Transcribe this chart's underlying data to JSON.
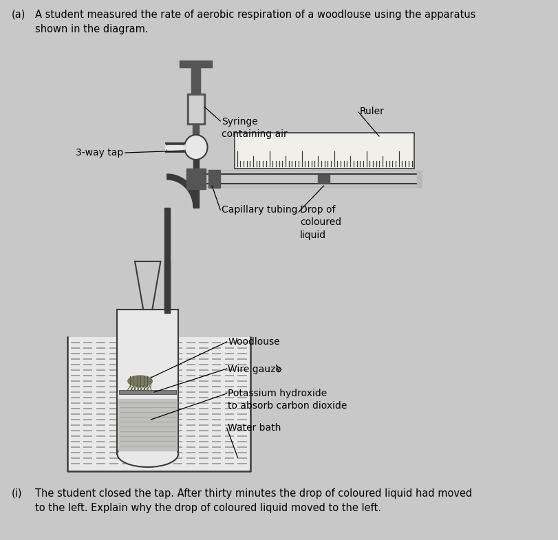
{
  "background_color": "#c8c8c8",
  "title_a": "(a)",
  "title_text": "A student measured the rate of aerobic respiration of a woodlouse using the apparatus\nshown in the diagram.",
  "question_i": "(i)",
  "question_text": "The student closed the tap. After thirty minutes the drop of coloured liquid had moved\nto the left. Explain why the drop of coloured liquid moved to the left.",
  "labels": {
    "three_way_tap": "3-way tap",
    "syringe": "Syringe\ncontaining air",
    "ruler": "Ruler",
    "capillary_tubing": "Capillary tubing",
    "drop": "Drop of\ncoloured\nliquid",
    "woodlouse": "Woodlouse",
    "wire_gauze": "Wire gauze",
    "potassium": "Potassium hydroxide\nto absorb carbon dioxide",
    "water_bath": "Water bath"
  },
  "colors": {
    "dark_gray": "#3a3a3a",
    "medium_gray": "#808080",
    "light_gray": "#b8b8b8",
    "near_white": "#e8e8e8",
    "white": "#ffffff",
    "black": "#000000",
    "ruler_bg": "#f0f0e8",
    "syringe_dark": "#555555",
    "syringe_light": "#d0d0d0",
    "tube_gray": "#a0a0a0",
    "water_dash": "#909090",
    "koh_fill": "#c0c0bc"
  }
}
